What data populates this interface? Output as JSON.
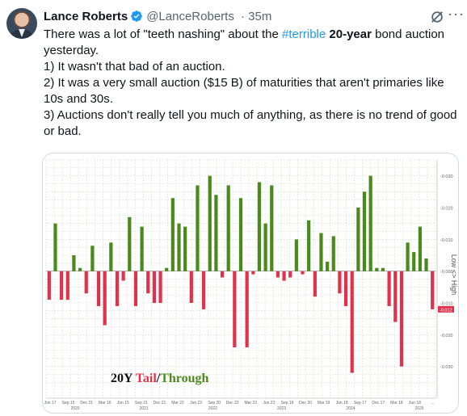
{
  "tweet": {
    "author_name": "Lance Roberts",
    "handle": "@LanceRoberts",
    "separator": "·",
    "time": "35m",
    "icons": {
      "verified": "verified-badge-icon",
      "grok": "grok-icon",
      "more": "more-options-icon"
    },
    "accent_color": "#1d9bf0",
    "line1_pre": "There was a lot of \"teeth nashing\" about the ",
    "hashtag": "#terrible",
    "line1_space": " ",
    "line1_bold": "20-year",
    "line1_post": " bond auction yesterday.",
    "line2": "1) It wasn't that bad of an auction.",
    "line3": "2) It was a very small auction ($15 B) of maturities that aren't primaries like 10s and 30s.",
    "line4": "3) Auctions don't really tell you much of anything, as there is no trend of good or bad."
  },
  "chart_data": {
    "type": "bar",
    "title_part1": "20Y ",
    "title_part2": "Tail",
    "title_part3": "/",
    "title_part4": "Through",
    "colors": {
      "positive": "#4a8a1c",
      "negative": "#e0334b",
      "title_tail": "#e0334b",
      "title_through": "#4a8a1c",
      "title_main": "#111111"
    },
    "ylabel": "Low <> High",
    "ylim": [
      -0.04,
      0.035
    ],
    "yticks": [
      "0.030",
      "0.020",
      "0.010",
      "0.000",
      "0.010",
      "0.020",
      "0.030"
    ],
    "ytick_values": [
      0.03,
      0.02,
      0.01,
      0,
      -0.01,
      -0.02,
      -0.03
    ],
    "last_value_label": "-0.012",
    "xtick_labels": [
      "Jun 17",
      "Sep 15",
      "Dec 21",
      "Mar 16",
      "Jun 15",
      "Sep 21",
      "Dec 21",
      "Mar 22",
      "Jun 22",
      "Sep 20",
      "Dec 22",
      "Mar 23",
      "Jun 23",
      "Sep 19",
      "Dec 20",
      "Mar 19",
      "Jun 18",
      "Sep 17",
      "Dec 17",
      "Mar 18",
      "Jun 18",
      "..."
    ],
    "year_labels": [
      "2020",
      "2021",
      "2022",
      "2023",
      "2024",
      "2025"
    ],
    "values": [
      -0.009,
      0.015,
      -0.009,
      -0.009,
      0.005,
      0.001,
      -0.007,
      0.008,
      -0.011,
      -0.017,
      0.009,
      -0.011,
      -0.003,
      0.017,
      -0.011,
      0.014,
      -0.007,
      -0.01,
      -0.01,
      0.001,
      0.023,
      0.015,
      0.014,
      -0.01,
      0.027,
      -0.012,
      0.03,
      0.024,
      -0.002,
      0.027,
      -0.024,
      0.023,
      -0.024,
      -0.001,
      0.028,
      0.015,
      0.027,
      -0.002,
      -0.003,
      -0.002,
      0.01,
      -0.001,
      0.016,
      -0.008,
      0.012,
      0.003,
      0.011,
      -0.007,
      -0.011,
      -0.032,
      0.02,
      0.025,
      0.03,
      0.001,
      0.001,
      -0.011,
      -0.016,
      -0.03,
      0.009,
      0.006,
      0.014,
      0.004,
      -0.012
    ]
  }
}
